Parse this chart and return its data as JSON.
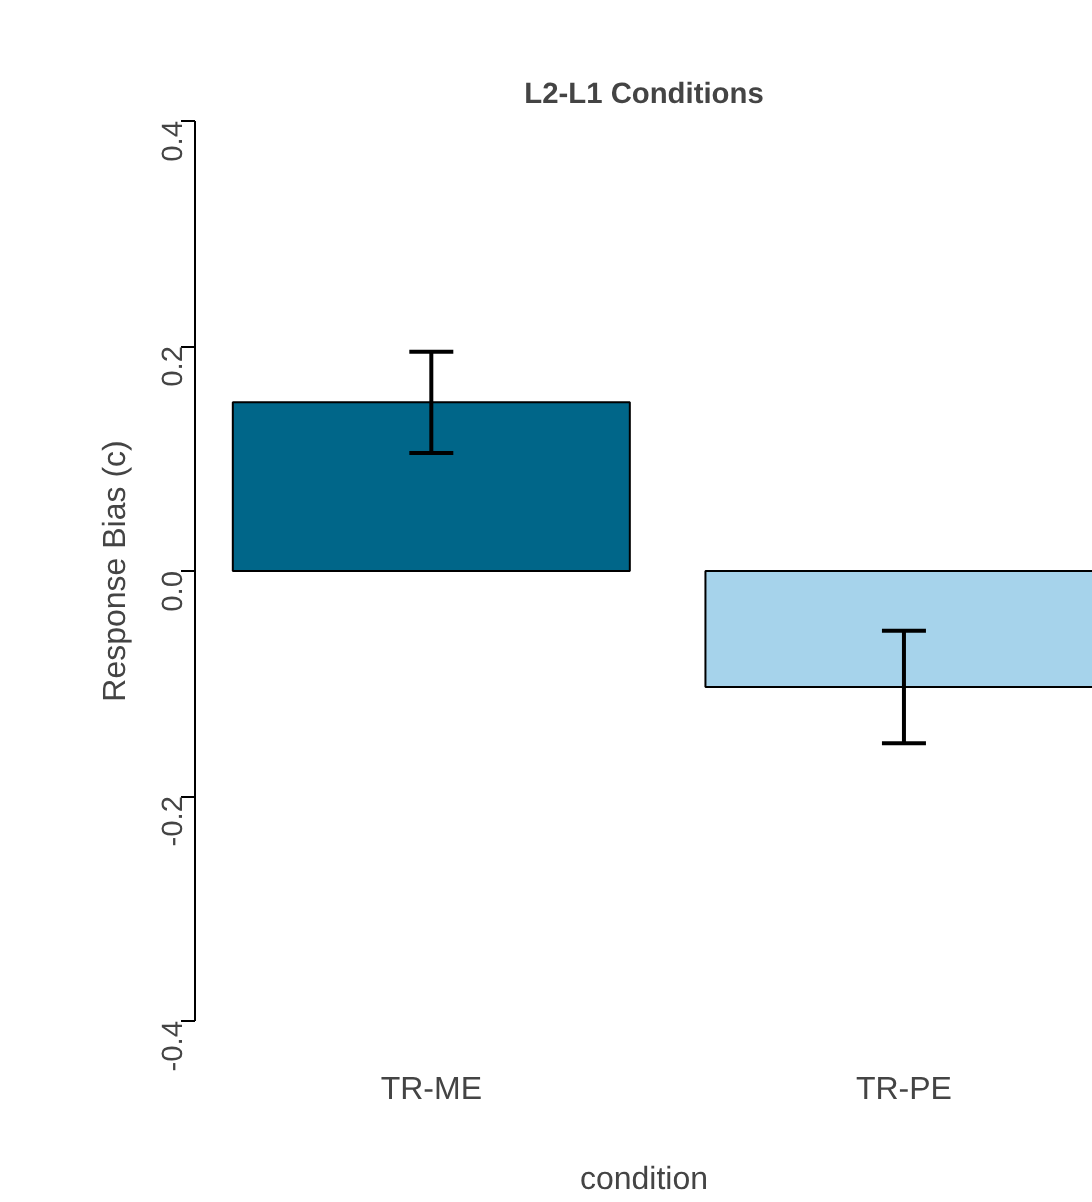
{
  "chart_data": {
    "type": "bar",
    "title": "L2-L1 Conditions",
    "xlabel": "condition",
    "ylabel": "Response Bias (c)",
    "categories": [
      "TR-ME",
      "TR-PE"
    ],
    "values": [
      0.15,
      -0.103
    ],
    "errors": [
      0.045,
      0.05
    ],
    "colors": [
      "#006689",
      "#a6d3eb"
    ],
    "ylim": [
      -0.4,
      0.4
    ],
    "yticks": [
      {
        "value": -0.4,
        "label": "-0.4"
      },
      {
        "value": -0.2,
        "label": "-0.2"
      },
      {
        "value": 0,
        "label": "0.0"
      },
      {
        "value": 0.2,
        "label": "0.2"
      },
      {
        "value": 0.4,
        "label": "0.4"
      }
    ],
    "grid": false
  }
}
